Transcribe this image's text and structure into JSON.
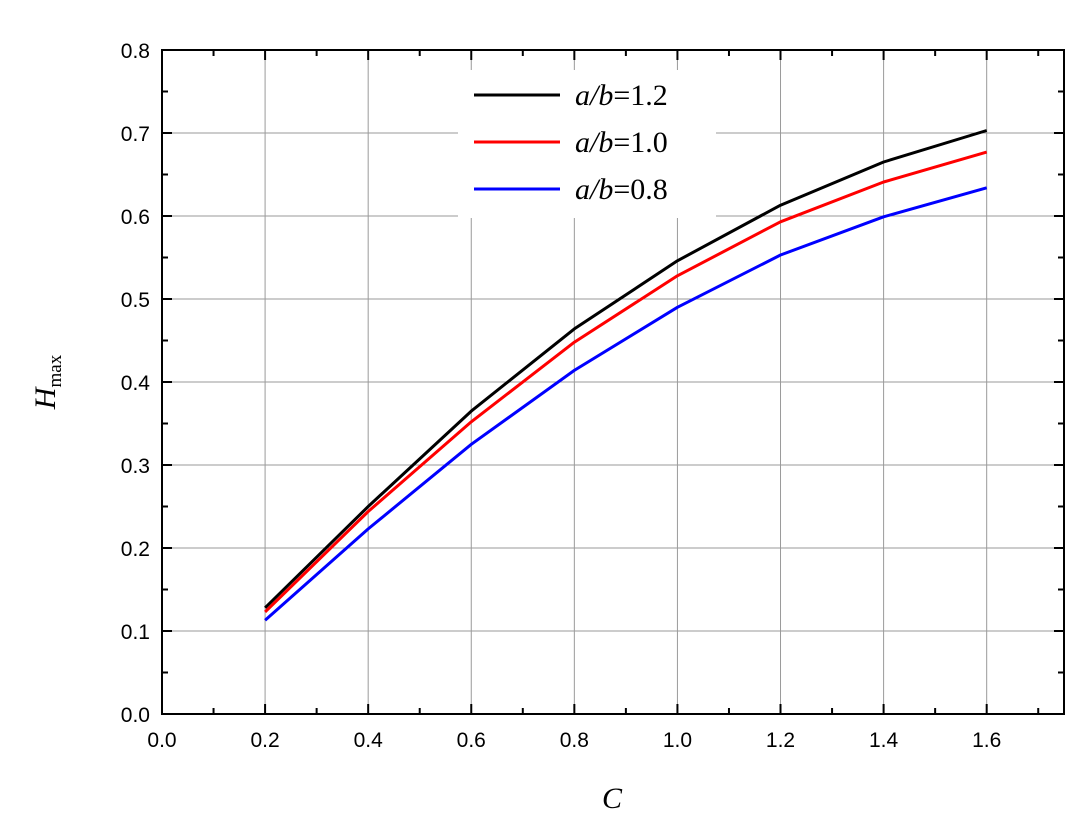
{
  "chart_data": {
    "type": "line",
    "title": "",
    "xlabel": "C",
    "ylabel": {
      "main": "H",
      "subscript": "max"
    },
    "xlim": [
      0.0,
      1.75
    ],
    "ylim": [
      0.0,
      0.8
    ],
    "x_ticks": [
      "0.0",
      "0.2",
      "0.4",
      "0.6",
      "0.8",
      "1.0",
      "1.2",
      "1.4",
      "1.6"
    ],
    "y_ticks": [
      "0.0",
      "0.1",
      "0.2",
      "0.3",
      "0.4",
      "0.5",
      "0.6",
      "0.7",
      "0.8"
    ],
    "grid": true,
    "legend_position": "top-center",
    "x": [
      0.2,
      0.4,
      0.6,
      0.8,
      1.0,
      1.2,
      1.4,
      1.6
    ],
    "series": [
      {
        "name_italic": "a/b",
        "name_value": "=1.2",
        "color": "#000000",
        "values": [
          0.128,
          0.25,
          0.365,
          0.464,
          0.546,
          0.613,
          0.665,
          0.703
        ]
      },
      {
        "name_italic": "a/b",
        "name_value": "=1.0",
        "color": "#ff0000",
        "values": [
          0.123,
          0.244,
          0.352,
          0.448,
          0.528,
          0.593,
          0.641,
          0.677
        ]
      },
      {
        "name_italic": "a/b",
        "name_value": "=0.8",
        "color": "#0000ff",
        "values": [
          0.113,
          0.223,
          0.325,
          0.414,
          0.49,
          0.553,
          0.599,
          0.634
        ]
      }
    ]
  }
}
